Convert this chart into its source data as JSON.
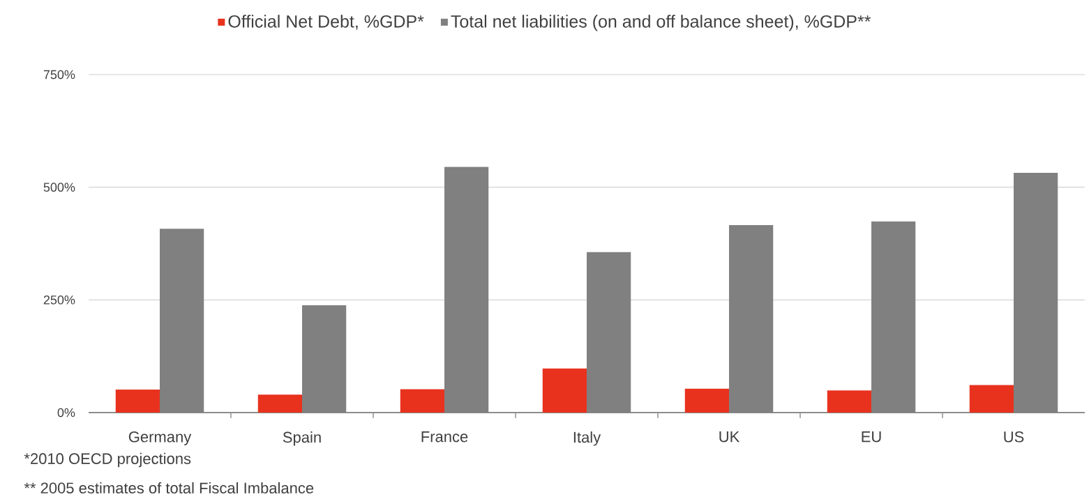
{
  "chart_data": {
    "type": "bar",
    "categories": [
      "Germany",
      "Spain",
      "France",
      "Italy",
      "UK",
      "EU",
      "US"
    ],
    "series": [
      {
        "name": "Official Net Debt, %GDP*",
        "color": "#e8321e",
        "values": [
          51,
          40,
          52,
          98,
          53,
          49,
          61
        ]
      },
      {
        "name": "Total net liabilities (on and off balance sheet), %GDP**",
        "color": "#808080",
        "values": [
          408,
          238,
          545,
          356,
          416,
          424,
          532
        ]
      }
    ],
    "ylim": [
      0,
      750
    ],
    "yticks": [
      {
        "value": 0,
        "label": "0%"
      },
      {
        "value": 250,
        "label": "250%"
      },
      {
        "value": 500,
        "label": "500%"
      },
      {
        "value": 750,
        "label": "750%"
      }
    ],
    "grid": "y",
    "legend": "top",
    "annotations": [
      "*2010 OECD projections",
      "** 2005 estimates of total Fiscal Imbalance"
    ]
  }
}
